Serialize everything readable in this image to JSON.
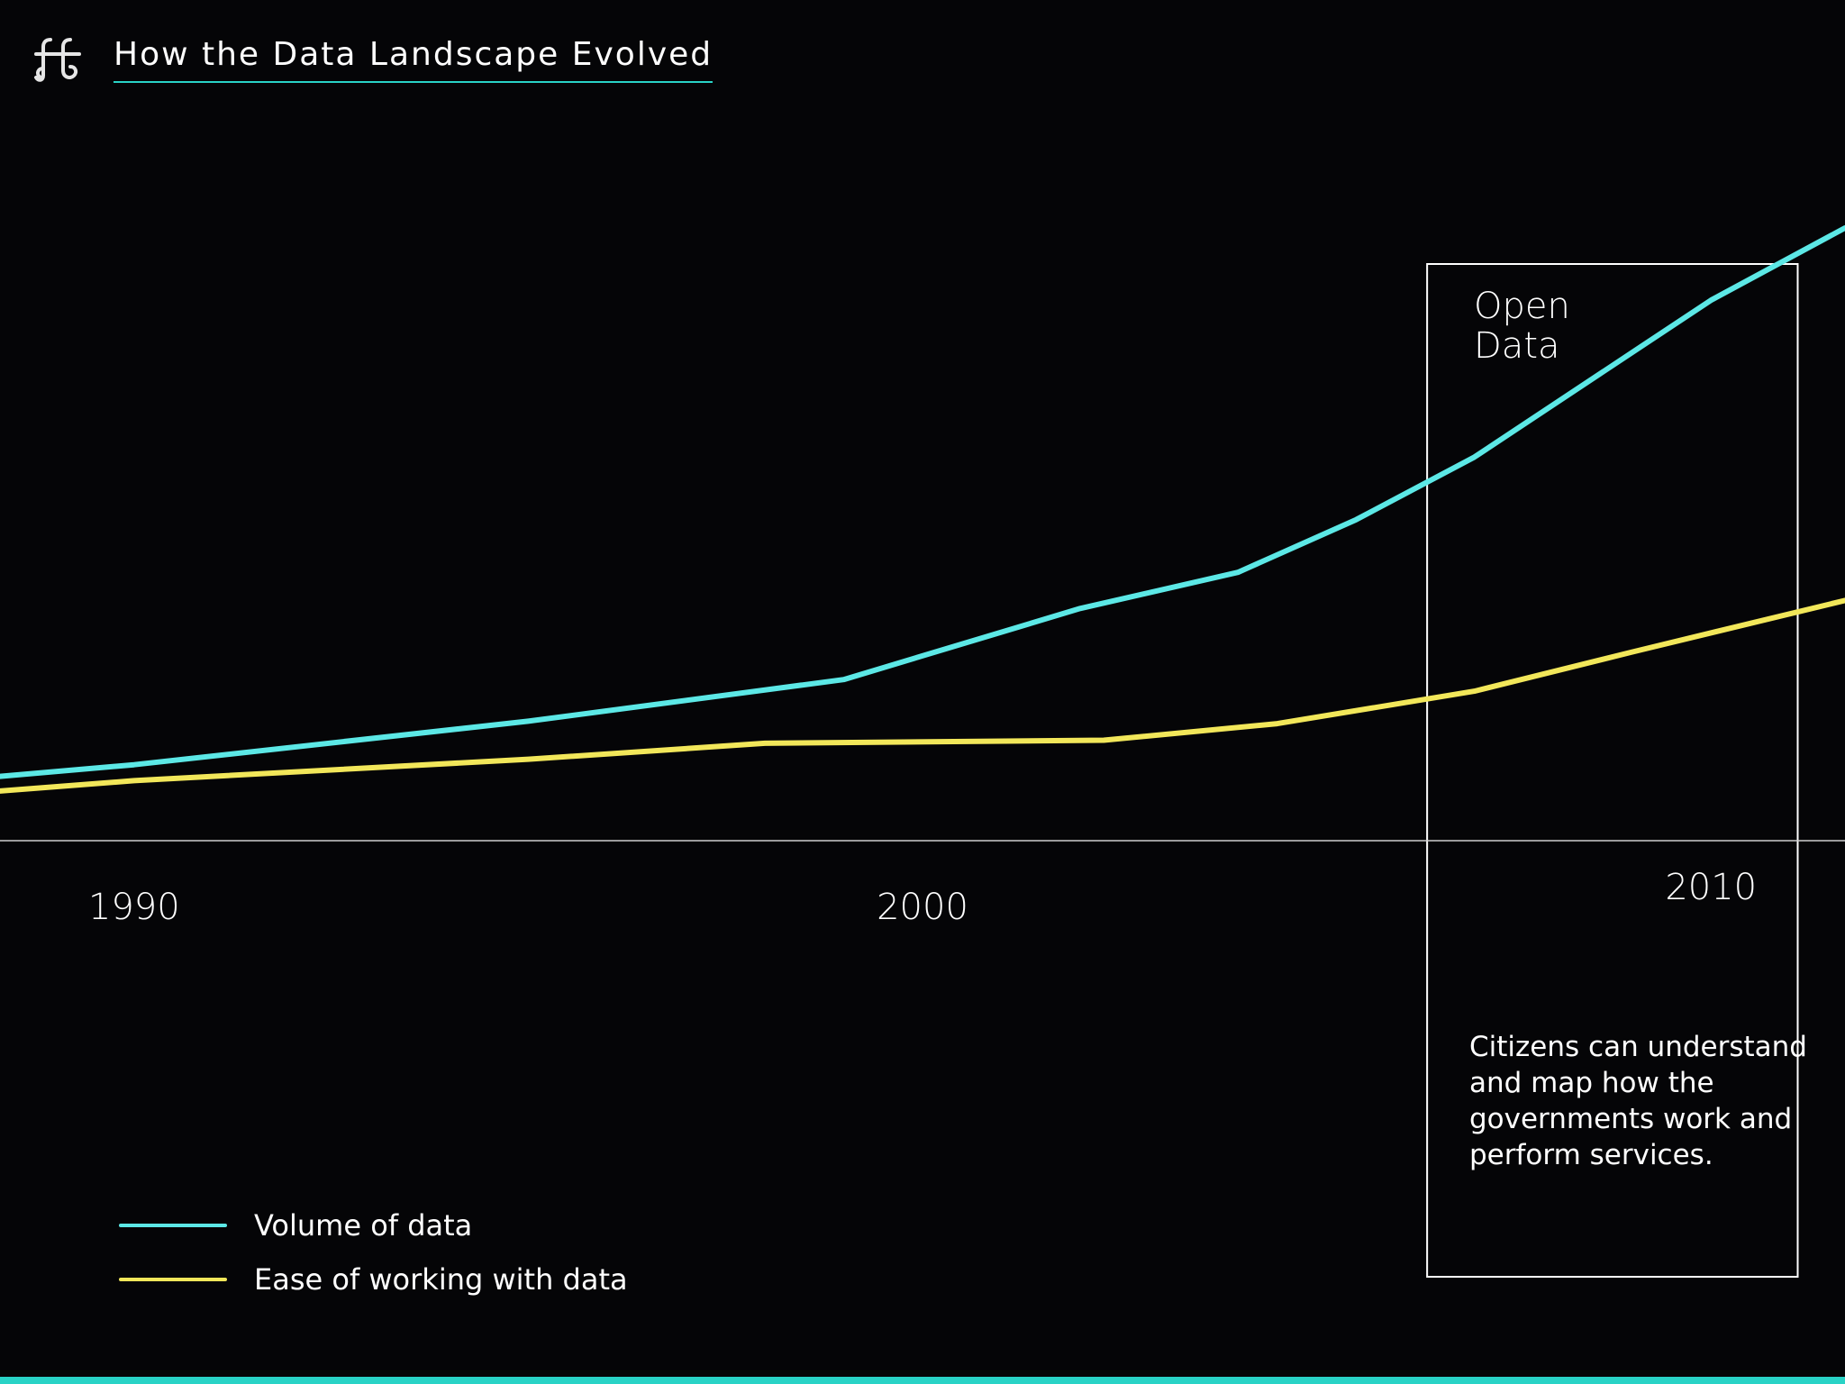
{
  "header": {
    "title": "How the Data Landscape Evolved",
    "logo_icon": "ff-monogram-icon"
  },
  "colors": {
    "background": "#050507",
    "volume": "#5ce8e6",
    "ease": "#f2e75a",
    "accent": "#29d3c6",
    "axis": "#cfcfcf"
  },
  "chart_data": {
    "type": "line",
    "title": "How the Data Landscape Evolved",
    "xlabel": "",
    "ylabel": "",
    "x_ticks": [
      "1990",
      "2000",
      "2010"
    ],
    "xlim": [
      1988.3,
      2011.7
    ],
    "ylim": [
      0,
      100
    ],
    "grid": false,
    "legend_placement": "bottom-left",
    "series": [
      {
        "name": "Volume of data",
        "color": "#5ce8e6",
        "points": [
          [
            1988.3,
            10.5
          ],
          [
            1990,
            12.4
          ],
          [
            1995,
            19.5
          ],
          [
            1999,
            26.3
          ],
          [
            2002,
            37.9
          ],
          [
            2004,
            43.8
          ],
          [
            2005.5,
            52.4
          ],
          [
            2007,
            62.6
          ],
          [
            2010,
            88.2
          ],
          [
            2011.7,
            100
          ]
        ]
      },
      {
        "name": "Ease of working with data",
        "color": "#f2e75a",
        "points": [
          [
            1988.3,
            8.1
          ],
          [
            1990,
            9.8
          ],
          [
            1995,
            13.3
          ],
          [
            1998,
            15.9
          ],
          [
            2002.3,
            16.4
          ],
          [
            2004.5,
            19.1
          ],
          [
            2007,
            24.4
          ],
          [
            2009,
            30.8
          ],
          [
            2011.7,
            39.2
          ]
        ]
      }
    ],
    "highlight": {
      "x_range": [
        2006.4,
        2011.1
      ],
      "label": "Open Data",
      "description": "Citizens can understand and map how the governments work and perform services."
    }
  },
  "legend": {
    "items": [
      {
        "label": "Volume of data",
        "color": "#5ce8e6"
      },
      {
        "label": "Ease of working with data",
        "color": "#f2e75a"
      }
    ]
  },
  "highlight": {
    "title_line1": "Open",
    "title_line2": "Data",
    "description": "Citizens can understand and map how the governments work and perform services."
  }
}
